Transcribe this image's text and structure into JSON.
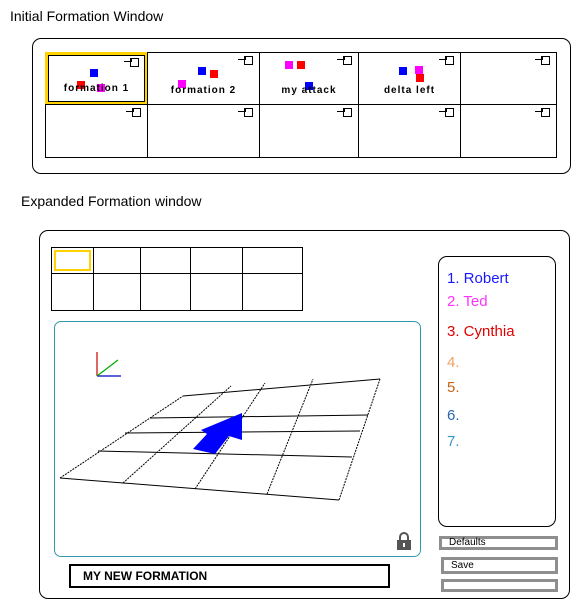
{
  "initial_window": {
    "title": "Initial Formation Window",
    "slots": [
      {
        "label": "formation 1",
        "selected": true,
        "dots": [
          {
            "color": "#0000ff"
          },
          {
            "color": "#ff0000"
          },
          {
            "color": "#ff00ff"
          }
        ]
      },
      {
        "label": "formation 2",
        "selected": false,
        "dots": [
          {
            "color": "#0000ff"
          },
          {
            "color": "#ff0000"
          },
          {
            "color": "#ff00ff"
          }
        ]
      },
      {
        "label": "my attack",
        "selected": false,
        "dots": [
          {
            "color": "#ff00ff"
          },
          {
            "color": "#ff0000"
          },
          {
            "color": "#0000ff"
          }
        ]
      },
      {
        "label": "delta left",
        "selected": false,
        "dots": [
          {
            "color": "#ff00ff"
          },
          {
            "color": "#0000ff"
          },
          {
            "color": "#ff0000"
          }
        ]
      },
      {
        "label": "",
        "selected": false,
        "dots": []
      },
      {
        "label": "",
        "selected": false,
        "dots": []
      },
      {
        "label": "",
        "selected": false,
        "dots": []
      },
      {
        "label": "",
        "selected": false,
        "dots": []
      },
      {
        "label": "",
        "selected": false,
        "dots": []
      },
      {
        "label": "",
        "selected": false,
        "dots": []
      }
    ]
  },
  "expanded_window": {
    "title": "Expanded Formation window",
    "formation_name": "MY NEW FORMATION",
    "roster": [
      {
        "number": "1.",
        "name": "Robert",
        "color": "#1a1aff"
      },
      {
        "number": "2.",
        "name": "Ted",
        "color": "#ff33ff"
      },
      {
        "number": "3.",
        "name": "Cynthia",
        "color": "#e00000"
      },
      {
        "number": "4.",
        "name": "",
        "color": "#f0a060"
      },
      {
        "number": "5.",
        "name": "",
        "color": "#c86414"
      },
      {
        "number": "6.",
        "name": "",
        "color": "#2a64b4"
      },
      {
        "number": "7.",
        "name": "",
        "color": "#3c96c8"
      }
    ],
    "buttons": {
      "defaults_label": "Defaults",
      "save_label": "Save",
      "third_label": ""
    },
    "viewport": {
      "accent_color": "#3399aa",
      "arrow_color": "#0000ff",
      "lock_icon": "lock-icon",
      "axes_icon": "axes-gizmo-icon"
    }
  }
}
